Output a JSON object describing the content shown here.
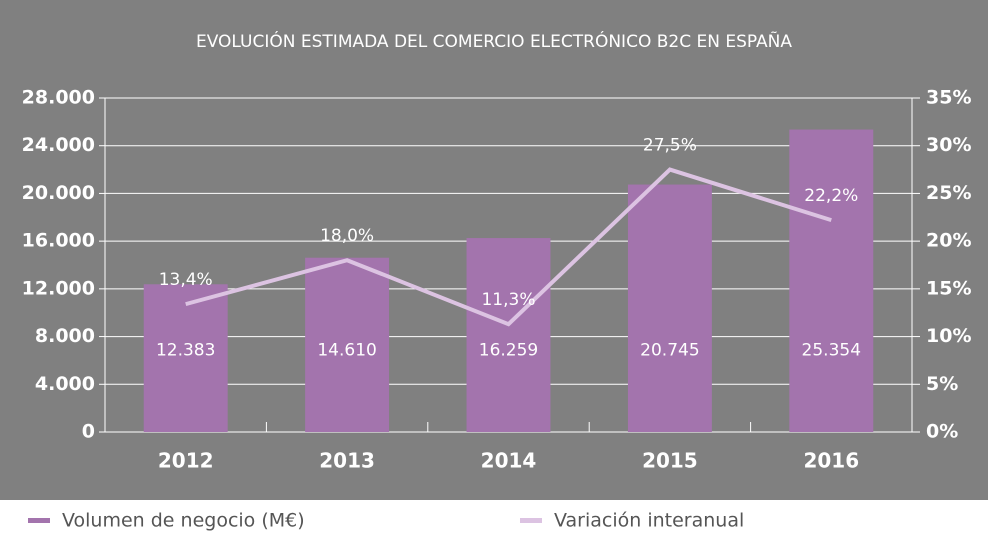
{
  "chart_data": {
    "type": "bar",
    "title": "EVOLUCIÓN ESTIMADA DEL COMERCIO ELECTRÓNICO B2C EN ESPAÑA",
    "categories": [
      "2012",
      "2013",
      "2014",
      "2015",
      "2016"
    ],
    "series": [
      {
        "name": "Volumen de negocio (M€)",
        "type": "bar",
        "color": "#a374ad",
        "values": [
          12383,
          14610,
          16259,
          20745,
          25354
        ],
        "value_labels": [
          "12.383",
          "14.610",
          "16.259",
          "20.745",
          "25.354"
        ]
      },
      {
        "name": "Variación interanual",
        "type": "line",
        "axis": "y2",
        "color": "#dcc3e2",
        "values": [
          13.4,
          18.0,
          11.3,
          27.5,
          22.2
        ],
        "value_labels": [
          "13,4%",
          "18,0%",
          "11,3%",
          "27,5%",
          "22,2%"
        ]
      }
    ],
    "ylim": [
      0,
      28000
    ],
    "yticks": [
      0,
      {
        "value": 4000,
        "label": "4.000"
      },
      {
        "value": 8000,
        "label": "8.000"
      },
      {
        "value": 12000,
        "label": "12.000"
      },
      {
        "value": 16000,
        "label": "16.000"
      },
      {
        "value": 20000,
        "label": "20.000"
      },
      {
        "value": 24000,
        "label": "24.000"
      },
      {
        "value": 28000,
        "label": "28.000"
      }
    ],
    "y2lim": [
      0,
      35
    ],
    "y2ticks": [
      {
        "value": 0,
        "label": "0%"
      },
      {
        "value": 5,
        "label": "5%"
      },
      {
        "value": 10,
        "label": "10%"
      },
      {
        "value": 15,
        "label": "15%"
      },
      {
        "value": 20,
        "label": "20%"
      },
      {
        "value": 25,
        "label": "25%"
      },
      {
        "value": 30,
        "label": "30%"
      },
      {
        "value": 35,
        "label": "35%"
      }
    ],
    "grid": true,
    "legend": "bottom"
  }
}
